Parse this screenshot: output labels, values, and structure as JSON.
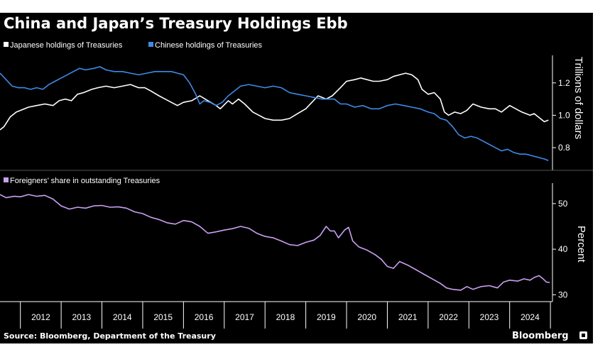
{
  "chart_data": [
    {
      "type": "line",
      "title": "China and Japan’s Treasury Holdings Ebb",
      "ylabel": "Trillions of dollars",
      "ylim": [
        0.66,
        1.37
      ],
      "yticks": [
        0.8,
        1.0,
        1.2
      ],
      "ytick_labels": [
        "0.8",
        "1.0",
        "1.2"
      ],
      "xlim": [
        2011.5,
        2025.05
      ],
      "grid": false,
      "legend": "top-left",
      "series": [
        {
          "name": "Japanese holdings of Treasuries",
          "color": "#ffffff",
          "points": [
            [
              2011.5,
              0.91
            ],
            [
              2011.6,
              0.93
            ],
            [
              2011.75,
              0.99
            ],
            [
              2011.9,
              1.02
            ],
            [
              2012.0,
              1.03
            ],
            [
              2012.2,
              1.05
            ],
            [
              2012.4,
              1.06
            ],
            [
              2012.6,
              1.07
            ],
            [
              2012.8,
              1.06
            ],
            [
              2012.95,
              1.09
            ],
            [
              2013.1,
              1.1
            ],
            [
              2013.25,
              1.09
            ],
            [
              2013.4,
              1.13
            ],
            [
              2013.55,
              1.14
            ],
            [
              2013.75,
              1.16
            ],
            [
              2013.9,
              1.17
            ],
            [
              2014.1,
              1.18
            ],
            [
              2014.3,
              1.17
            ],
            [
              2014.5,
              1.18
            ],
            [
              2014.7,
              1.19
            ],
            [
              2014.9,
              1.17
            ],
            [
              2015.05,
              1.17
            ],
            [
              2015.2,
              1.15
            ],
            [
              2015.4,
              1.12
            ],
            [
              2015.55,
              1.1
            ],
            [
              2015.7,
              1.08
            ],
            [
              2015.85,
              1.06
            ],
            [
              2016.0,
              1.08
            ],
            [
              2016.2,
              1.09
            ],
            [
              2016.4,
              1.12
            ],
            [
              2016.6,
              1.09
            ],
            [
              2016.8,
              1.06
            ],
            [
              2016.9,
              1.04
            ],
            [
              2017.1,
              1.09
            ],
            [
              2017.2,
              1.07
            ],
            [
              2017.35,
              1.1
            ],
            [
              2017.5,
              1.07
            ],
            [
              2017.7,
              1.02
            ],
            [
              2017.85,
              1.0
            ],
            [
              2018.0,
              0.98
            ],
            [
              2018.2,
              0.97
            ],
            [
              2018.4,
              0.97
            ],
            [
              2018.6,
              0.98
            ],
            [
              2018.8,
              1.01
            ],
            [
              2019.0,
              1.04
            ],
            [
              2019.15,
              1.08
            ],
            [
              2019.3,
              1.12
            ],
            [
              2019.5,
              1.1
            ],
            [
              2019.65,
              1.12
            ],
            [
              2019.85,
              1.17
            ],
            [
              2020.0,
              1.21
            ],
            [
              2020.2,
              1.22
            ],
            [
              2020.35,
              1.23
            ],
            [
              2020.5,
              1.22
            ],
            [
              2020.65,
              1.21
            ],
            [
              2020.8,
              1.21
            ],
            [
              2021.0,
              1.22
            ],
            [
              2021.15,
              1.24
            ],
            [
              2021.3,
              1.25
            ],
            [
              2021.45,
              1.26
            ],
            [
              2021.6,
              1.25
            ],
            [
              2021.75,
              1.22
            ],
            [
              2021.85,
              1.16
            ],
            [
              2022.0,
              1.13
            ],
            [
              2022.15,
              1.14
            ],
            [
              2022.3,
              1.1
            ],
            [
              2022.4,
              1.02
            ],
            [
              2022.5,
              1.0
            ],
            [
              2022.65,
              1.02
            ],
            [
              2022.8,
              1.01
            ],
            [
              2022.95,
              1.03
            ],
            [
              2023.1,
              1.07
            ],
            [
              2023.3,
              1.05
            ],
            [
              2023.5,
              1.04
            ],
            [
              2023.65,
              1.04
            ],
            [
              2023.8,
              1.02
            ],
            [
              2024.0,
              1.06
            ],
            [
              2024.15,
              1.04
            ],
            [
              2024.3,
              1.02
            ],
            [
              2024.5,
              1.0
            ],
            [
              2024.6,
              1.01
            ],
            [
              2024.75,
              0.98
            ],
            [
              2024.85,
              0.96
            ],
            [
              2024.95,
              0.97
            ]
          ]
        },
        {
          "name": "Chinese holdings of Treasuries",
          "color": "#3d8be8",
          "points": [
            [
              2011.5,
              1.26
            ],
            [
              2011.65,
              1.22
            ],
            [
              2011.8,
              1.18
            ],
            [
              2011.95,
              1.17
            ],
            [
              2012.1,
              1.17
            ],
            [
              2012.25,
              1.16
            ],
            [
              2012.4,
              1.17
            ],
            [
              2012.55,
              1.16
            ],
            [
              2012.7,
              1.19
            ],
            [
              2012.85,
              1.21
            ],
            [
              2013.0,
              1.23
            ],
            [
              2013.15,
              1.25
            ],
            [
              2013.3,
              1.27
            ],
            [
              2013.45,
              1.29
            ],
            [
              2013.6,
              1.28
            ],
            [
              2013.8,
              1.29
            ],
            [
              2013.95,
              1.3
            ],
            [
              2014.1,
              1.28
            ],
            [
              2014.3,
              1.27
            ],
            [
              2014.5,
              1.27
            ],
            [
              2014.7,
              1.26
            ],
            [
              2014.9,
              1.25
            ],
            [
              2015.1,
              1.26
            ],
            [
              2015.3,
              1.27
            ],
            [
              2015.5,
              1.27
            ],
            [
              2015.7,
              1.27
            ],
            [
              2015.85,
              1.26
            ],
            [
              2016.0,
              1.25
            ],
            [
              2016.15,
              1.2
            ],
            [
              2016.3,
              1.13
            ],
            [
              2016.4,
              1.07
            ],
            [
              2016.5,
              1.09
            ],
            [
              2016.65,
              1.08
            ],
            [
              2016.8,
              1.06
            ],
            [
              2016.95,
              1.08
            ],
            [
              2017.1,
              1.12
            ],
            [
              2017.25,
              1.15
            ],
            [
              2017.4,
              1.18
            ],
            [
              2017.6,
              1.19
            ],
            [
              2017.8,
              1.18
            ],
            [
              2018.0,
              1.17
            ],
            [
              2018.2,
              1.18
            ],
            [
              2018.4,
              1.17
            ],
            [
              2018.6,
              1.14
            ],
            [
              2018.8,
              1.13
            ],
            [
              2019.0,
              1.12
            ],
            [
              2019.2,
              1.11
            ],
            [
              2019.4,
              1.1
            ],
            [
              2019.55,
              1.1
            ],
            [
              2019.7,
              1.1
            ],
            [
              2019.85,
              1.07
            ],
            [
              2020.0,
              1.07
            ],
            [
              2020.2,
              1.05
            ],
            [
              2020.4,
              1.06
            ],
            [
              2020.6,
              1.04
            ],
            [
              2020.8,
              1.04
            ],
            [
              2021.0,
              1.06
            ],
            [
              2021.2,
              1.07
            ],
            [
              2021.4,
              1.06
            ],
            [
              2021.6,
              1.05
            ],
            [
              2021.8,
              1.04
            ],
            [
              2022.0,
              1.02
            ],
            [
              2022.15,
              1.01
            ],
            [
              2022.3,
              0.98
            ],
            [
              2022.45,
              0.97
            ],
            [
              2022.6,
              0.93
            ],
            [
              2022.75,
              0.88
            ],
            [
              2022.9,
              0.86
            ],
            [
              2023.05,
              0.87
            ],
            [
              2023.2,
              0.86
            ],
            [
              2023.35,
              0.84
            ],
            [
              2023.5,
              0.82
            ],
            [
              2023.65,
              0.8
            ],
            [
              2023.8,
              0.78
            ],
            [
              2023.95,
              0.79
            ],
            [
              2024.1,
              0.77
            ],
            [
              2024.25,
              0.76
            ],
            [
              2024.4,
              0.76
            ],
            [
              2024.55,
              0.75
            ],
            [
              2024.7,
              0.74
            ],
            [
              2024.85,
              0.73
            ],
            [
              2024.95,
              0.72
            ]
          ]
        }
      ]
    },
    {
      "type": "line",
      "ylabel": "Percent",
      "ylim": [
        28.5,
        54.5
      ],
      "yticks": [
        30,
        40,
        50
      ],
      "ytick_labels": [
        "30",
        "40",
        "50"
      ],
      "xlim": [
        2011.5,
        2025.05
      ],
      "xtick_labels": [
        "2012",
        "2013",
        "2014",
        "2015",
        "2016",
        "2017",
        "2018",
        "2019",
        "2020",
        "2021",
        "2022",
        "2023",
        "2024"
      ],
      "grid": false,
      "legend": "top-left",
      "series": [
        {
          "name": "Foreigners’ share in outstanding Treasuries",
          "color": "#c9a0f0",
          "points": [
            [
              2011.5,
              52.0
            ],
            [
              2011.65,
              51.3
            ],
            [
              2011.85,
              51.6
            ],
            [
              2012.0,
              51.5
            ],
            [
              2012.2,
              52.0
            ],
            [
              2012.4,
              51.6
            ],
            [
              2012.6,
              51.8
            ],
            [
              2012.8,
              51.0
            ],
            [
              2013.0,
              49.5
            ],
            [
              2013.2,
              48.8
            ],
            [
              2013.4,
              49.2
            ],
            [
              2013.6,
              49.0
            ],
            [
              2013.8,
              49.5
            ],
            [
              2014.0,
              49.6
            ],
            [
              2014.2,
              49.2
            ],
            [
              2014.4,
              49.3
            ],
            [
              2014.6,
              49.0
            ],
            [
              2014.8,
              48.2
            ],
            [
              2015.0,
              47.8
            ],
            [
              2015.2,
              47.0
            ],
            [
              2015.4,
              46.5
            ],
            [
              2015.6,
              45.8
            ],
            [
              2015.8,
              45.5
            ],
            [
              2016.0,
              46.3
            ],
            [
              2016.2,
              46.0
            ],
            [
              2016.4,
              45.0
            ],
            [
              2016.6,
              43.5
            ],
            [
              2016.8,
              43.8
            ],
            [
              2017.0,
              44.2
            ],
            [
              2017.2,
              44.5
            ],
            [
              2017.4,
              45.0
            ],
            [
              2017.6,
              44.6
            ],
            [
              2017.8,
              43.5
            ],
            [
              2018.0,
              42.8
            ],
            [
              2018.2,
              42.5
            ],
            [
              2018.4,
              41.8
            ],
            [
              2018.6,
              41.0
            ],
            [
              2018.8,
              40.8
            ],
            [
              2019.0,
              41.5
            ],
            [
              2019.2,
              42.0
            ],
            [
              2019.35,
              43.0
            ],
            [
              2019.5,
              45.0
            ],
            [
              2019.6,
              44.0
            ],
            [
              2019.7,
              44.0
            ],
            [
              2019.8,
              42.5
            ],
            [
              2019.95,
              44.2
            ],
            [
              2020.05,
              44.8
            ],
            [
              2020.15,
              41.8
            ],
            [
              2020.3,
              40.5
            ],
            [
              2020.5,
              39.8
            ],
            [
              2020.7,
              38.8
            ],
            [
              2020.85,
              37.8
            ],
            [
              2021.0,
              36.2
            ],
            [
              2021.15,
              35.8
            ],
            [
              2021.3,
              37.3
            ],
            [
              2021.5,
              36.5
            ],
            [
              2021.7,
              35.5
            ],
            [
              2021.9,
              34.5
            ],
            [
              2022.1,
              33.5
            ],
            [
              2022.3,
              32.5
            ],
            [
              2022.45,
              31.5
            ],
            [
              2022.6,
              31.2
            ],
            [
              2022.8,
              31.0
            ],
            [
              2022.95,
              31.8
            ],
            [
              2023.1,
              31.2
            ],
            [
              2023.3,
              31.8
            ],
            [
              2023.5,
              32.0
            ],
            [
              2023.7,
              31.5
            ],
            [
              2023.85,
              32.8
            ],
            [
              2024.0,
              33.2
            ],
            [
              2024.2,
              33.0
            ],
            [
              2024.35,
              33.5
            ],
            [
              2024.5,
              33.2
            ],
            [
              2024.6,
              33.8
            ],
            [
              2024.72,
              34.2
            ],
            [
              2024.82,
              33.5
            ],
            [
              2024.9,
              32.8
            ],
            [
              2024.98,
              32.7
            ]
          ]
        }
      ]
    }
  ],
  "footer": {
    "source": "Source: Bloomberg, Department of the Treasury",
    "brand": "Bloomberg"
  }
}
